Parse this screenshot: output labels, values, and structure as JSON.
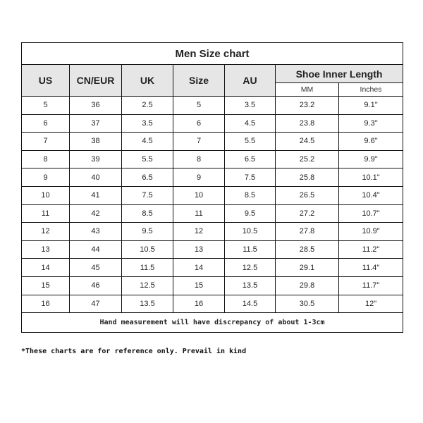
{
  "title": "Men Size chart",
  "headers": {
    "us": "US",
    "cn_eur": "CN/EUR",
    "uk": "UK",
    "size": "Size",
    "au": "AU",
    "length": "Shoe Inner Length",
    "mm": "MM",
    "inches": "Inches"
  },
  "rows": [
    [
      "5",
      "36",
      "2.5",
      "5",
      "3.5",
      "23.2",
      "9.1\""
    ],
    [
      "6",
      "37",
      "3.5",
      "6",
      "4.5",
      "23.8",
      "9.3\""
    ],
    [
      "7",
      "38",
      "4.5",
      "7",
      "5.5",
      "24.5",
      "9.6\""
    ],
    [
      "8",
      "39",
      "5.5",
      "8",
      "6.5",
      "25.2",
      "9.9\""
    ],
    [
      "9",
      "40",
      "6.5",
      "9",
      "7.5",
      "25.8",
      "10.1\""
    ],
    [
      "10",
      "41",
      "7.5",
      "10",
      "8.5",
      "26.5",
      "10.4\""
    ],
    [
      "11",
      "42",
      "8.5",
      "11",
      "9.5",
      "27.2",
      "10.7\""
    ],
    [
      "12",
      "43",
      "9.5",
      "12",
      "10.5",
      "27.8",
      "10.9\""
    ],
    [
      "13",
      "44",
      "10.5",
      "13",
      "11.5",
      "28.5",
      "11.2\""
    ],
    [
      "14",
      "45",
      "11.5",
      "14",
      "12.5",
      "29.1",
      "11.4\""
    ],
    [
      "15",
      "46",
      "12.5",
      "15",
      "13.5",
      "29.8",
      "11.7\""
    ],
    [
      "16",
      "47",
      "13.5",
      "16",
      "14.5",
      "30.5",
      "12\""
    ]
  ],
  "footer": "Hand measurement will have discrepancy of about 1-3cm",
  "note": "*These charts are for reference only. Prevail in kind",
  "colors": {
    "header_bg": "#e6e6e6",
    "border": "#111111"
  }
}
